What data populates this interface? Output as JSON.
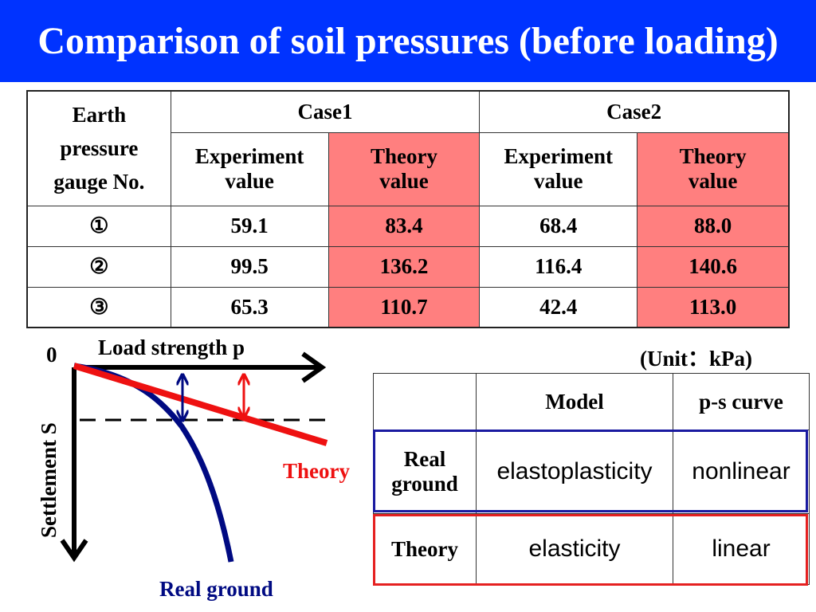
{
  "title": "Comparison of soil pressures (before loading)",
  "table1": {
    "gauge_header": [
      "Earth",
      "pressure",
      "gauge No."
    ],
    "case1": "Case1",
    "case2": "Case2",
    "experiment": [
      "Experiment",
      "value"
    ],
    "theory": [
      "Theory",
      "value"
    ],
    "rows": [
      {
        "no": "①",
        "c1_exp": "59.1",
        "c1_theory": "83.4",
        "c2_exp": "68.4",
        "c2_theory": "88.0"
      },
      {
        "no": "②",
        "c1_exp": "99.5",
        "c1_theory": "136.2",
        "c2_exp": "116.4",
        "c2_theory": "140.6"
      },
      {
        "no": "③",
        "c1_exp": "65.3",
        "c1_theory": "110.7",
        "c2_exp": "42.4",
        "c2_theory": "113.0"
      }
    ],
    "unit": "(Unit：kPa)"
  },
  "diagram": {
    "origin": "0",
    "x_label": "Load strength p",
    "y_label": "Settlement S",
    "theory_label": "Theory",
    "real_label": "Real ground",
    "colors": {
      "theory": "#ee1111",
      "real": "#000a82",
      "axis": "#000000"
    }
  },
  "table2": {
    "header_model": "Model",
    "header_curve": "p-s curve",
    "real_ground": [
      "Real",
      "ground"
    ],
    "real_model": "elastoplasticity",
    "real_curve": "nonlinear",
    "theory": "Theory",
    "theory_model": "elasticity",
    "theory_curve": "linear"
  },
  "colors": {
    "title_bg": "#0033ff",
    "theory_cell": "#ff7f7f",
    "blue_frame": "#1a1aa0",
    "red_frame": "#e52020"
  }
}
